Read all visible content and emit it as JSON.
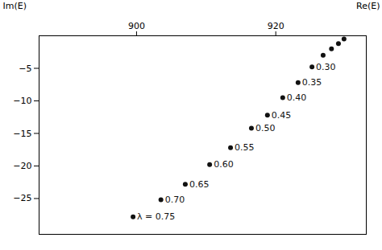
{
  "chart_data": {
    "type": "scatter",
    "x_label": "Re(E)",
    "y_label": "Im(E)",
    "x": [
      929.8,
      929.0,
      928.0,
      926.8,
      925.2,
      923.2,
      921.0,
      918.8,
      916.5,
      913.5,
      910.5,
      907.0,
      903.5,
      899.5
    ],
    "values": [
      -0.5,
      -1.2,
      -2.0,
      -3.0,
      -4.8,
      -7.2,
      -9.5,
      -12.2,
      -14.2,
      -17.2,
      -19.8,
      -22.8,
      -25.2,
      -27.8
    ],
    "annotations": [
      null,
      null,
      null,
      null,
      "0.30",
      "0.35",
      "0.40",
      "0.45",
      "0.50",
      "0.55",
      "0.60",
      "0.65",
      "0.70",
      "λ = 0.75"
    ],
    "color": "#111111",
    "marker": "circle",
    "xlim": [
      886,
      933
    ],
    "ylim": [
      -30.5,
      0
    ],
    "xticks": [
      900,
      920
    ],
    "yticks": [
      -5,
      -10,
      -15,
      -20,
      -25
    ],
    "grid": false
  }
}
